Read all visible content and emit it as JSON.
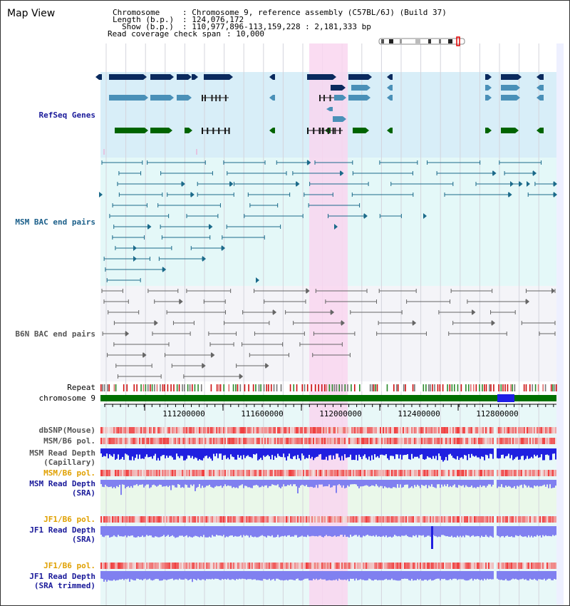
{
  "header": {
    "view_title": "Map View",
    "chromosome_label": "Chromosome",
    "chromosome_value": ": Chromosome 9, reference assembly (C57BL/6J) (Build 37)",
    "length_label": "Length (b.p.)",
    "length_value": ": 124,076,172",
    "show_label": "Show (b.p.)",
    "show_value": ": 110,977,896-113,159,228 : 2,181,333 bp",
    "coverage_label": "Read coverage check span",
    "coverage_value": ": 10,000"
  },
  "tracks": {
    "refseq": "RefSeq Genes",
    "msm_bac": "MSM BAC end pairs",
    "b6n_bac": "B6N BAC end pairs",
    "repeat": "Repeat",
    "chromosome": "chromosome 9",
    "dbsnp": "dbSNP(Mouse)",
    "msm_b6_pol": "MSM/B6 pol.",
    "msm_read_depth_cap_1": "MSM Read Depth",
    "msm_read_depth_cap_2": "(Capillary)",
    "msm_b6_pol_sra": "MSM/B6 pol.",
    "msm_read_depth_sra_1": "MSM Read Depth",
    "msm_read_depth_sra_2": "(SRA)",
    "jf1_b6_pol_1": "JF1/B6 pol.",
    "jf1_read_depth_1": "JF1 Read Depth",
    "jf1_read_depth_1b": "(SRA)",
    "jf1_b6_pol_2": "JF1/B6 pol.",
    "jf1_read_depth_2": "JF1 Read Depth",
    "jf1_read_depth_2b": "(SRA trimmed)"
  },
  "axis": {
    "ticks": [
      "111200000",
      "111600000",
      "112000000",
      "112400000",
      "112800000"
    ]
  },
  "colors": {
    "highlight": "#f9d6f0",
    "refseq_bg": "#d8eef8",
    "msm_bg": "#e4f8f8",
    "b6n_bg": "#f4f4f8",
    "depth_bg": "#e8f8f8",
    "dark_gene": "#0a2a5e",
    "mid_gene": "#4a90b8",
    "green_gene": "#006400",
    "msm_line": "#1b6a8a",
    "b6n_line": "#666666",
    "chrom_green": "#007000",
    "chrom_blue": "#1e1ee6",
    "depth_blue": "#2020e0",
    "depth_light": "#8080f0"
  }
}
